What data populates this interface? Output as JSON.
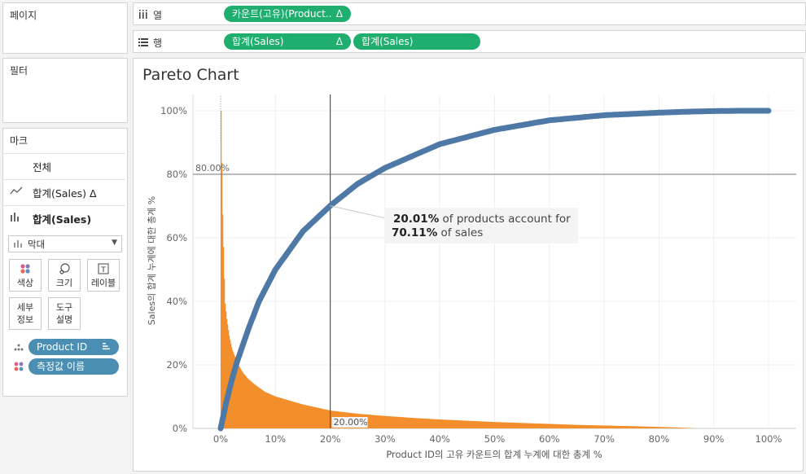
{
  "side": {
    "pages_label": "페이지",
    "filters_label": "필터",
    "marks_label": "마크",
    "mark_rows": [
      {
        "label": "전체",
        "icon": "none"
      },
      {
        "label": "합계(Sales) Δ",
        "icon": "line-mark-icon"
      },
      {
        "label": "합계(Sales)",
        "icon": "bar-mark-icon"
      }
    ],
    "mark_type": "막대",
    "buttons": {
      "color": "색상",
      "size": "크기",
      "label": "레이블",
      "detail_1": "세부",
      "detail_2": "정보",
      "tooltip_1": "도구",
      "tooltip_2": "설명"
    },
    "fields": [
      "Product ID",
      "측정값 이름"
    ]
  },
  "shelves": {
    "columns_label": "열",
    "rows_label": "행",
    "columns_pill": "카운트(고유)(Product..",
    "columns_pill_delta": "Δ",
    "rows_pill_1": "합계(Sales)",
    "rows_pill_1_delta": "Δ",
    "rows_pill_2": "합계(Sales)"
  },
  "chart": {
    "title": "Pareto Chart",
    "ylabel": "Sales의 합계 누계에 대한 총계 %",
    "xlabel": "Product ID의 고유 카운트의 합계 누계에 대한 총계 %",
    "ref_y_label": "80.00%",
    "ref_x_label": "20.00%",
    "annotation_line1_bold": "20.01%",
    "annotation_line1_rest": " of products account for",
    "annotation_line2_bold": "70.11%",
    "annotation_line2_rest": " of sales"
  },
  "chart_data": {
    "type": "bar",
    "title": "Pareto Chart",
    "xlabel": "Product ID의 고유 카운트의 합계 누계에 대한 총계 %",
    "ylabel": "Sales의 합계 누계에 대한 총계 %",
    "x_ticks": [
      "0%",
      "10%",
      "20%",
      "30%",
      "40%",
      "50%",
      "60%",
      "70%",
      "80%",
      "90%",
      "100%"
    ],
    "y_ticks": [
      "0%",
      "20%",
      "40%",
      "60%",
      "80%",
      "100%"
    ],
    "xlim": [
      0,
      100
    ],
    "ylim": [
      0,
      100
    ],
    "reference_lines": {
      "x": 20,
      "y": 80
    },
    "series": [
      {
        "type": "line",
        "x": [
          0,
          1,
          2,
          3,
          5,
          7,
          10,
          15,
          20,
          25,
          30,
          40,
          50,
          60,
          70,
          80,
          85,
          90,
          95,
          100
        ],
        "values": [
          0,
          8,
          15,
          21,
          31,
          40,
          50,
          62,
          70.1,
          77,
          82,
          89.5,
          94,
          97,
          98.6,
          99.4,
          99.7,
          99.9,
          100,
          100
        ],
        "color": "#4e79a7"
      },
      {
        "type": "bar",
        "x": [
          0,
          0.3,
          0.7,
          1,
          1.5,
          2,
          3,
          4,
          5,
          6,
          8,
          10,
          12,
          15,
          20,
          25,
          30,
          35,
          40,
          45,
          50,
          55,
          60,
          65,
          70,
          75,
          80,
          83,
          85,
          86.7
        ],
        "values": [
          100,
          67,
          40,
          35,
          29,
          25,
          20.5,
          17.5,
          15.5,
          14,
          11.5,
          10,
          9,
          7.5,
          5.6,
          4.6,
          3.9,
          3.3,
          2.8,
          2.4,
          2,
          1.7,
          1.4,
          1.1,
          0.9,
          0.7,
          0.45,
          0.3,
          0.15,
          0
        ],
        "color": "#f28e2b"
      }
    ]
  },
  "colors": {
    "accent_green": "#1fae6e",
    "field_blue": "#4a8fb3",
    "line_blue": "#4e79a7",
    "bar_orange": "#f28e2b"
  }
}
